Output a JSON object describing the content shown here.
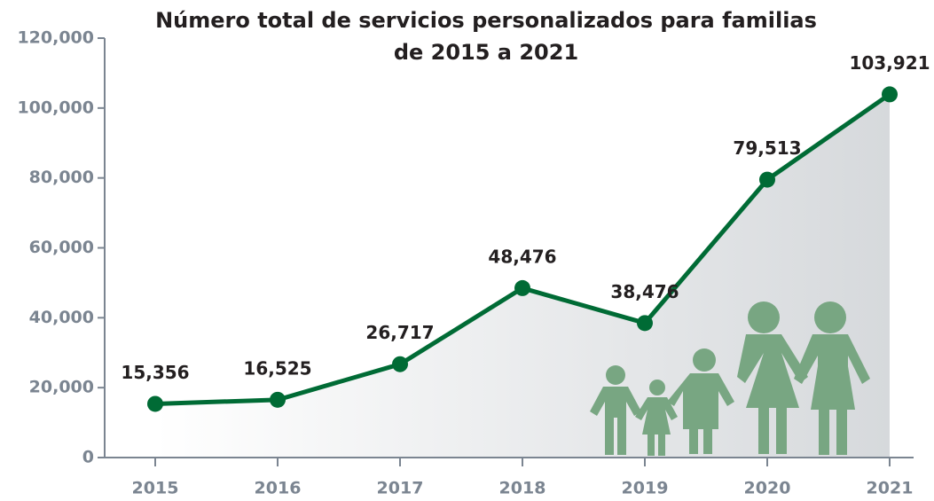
{
  "chart_data": {
    "type": "line",
    "title": [
      "Número total de servicios personalizados para familias",
      "de 2015 a 2021"
    ],
    "categories": [
      "2015",
      "2016",
      "2017",
      "2018",
      "2019",
      "2020",
      "2021"
    ],
    "values": [
      15356,
      16525,
      26717,
      48476,
      38476,
      79513,
      103921
    ],
    "value_labels": [
      "15,356",
      "16,525",
      "26,717",
      "48,476",
      "38,476",
      "79,513",
      "103,921"
    ],
    "color": "#006b35",
    "ylim": [
      0,
      120000
    ],
    "yticks": [
      0,
      {
        "value": 20000,
        "label": "20,000"
      },
      {
        "value": 40000,
        "label": "40,000"
      },
      {
        "value": 60000,
        "label": "60,000"
      },
      {
        "value": 80000,
        "label": "80,000"
      },
      {
        "value": 100000,
        "label": "100,000"
      },
      {
        "value": 120000,
        "label": "120,000"
      }
    ],
    "grid": false
  }
}
